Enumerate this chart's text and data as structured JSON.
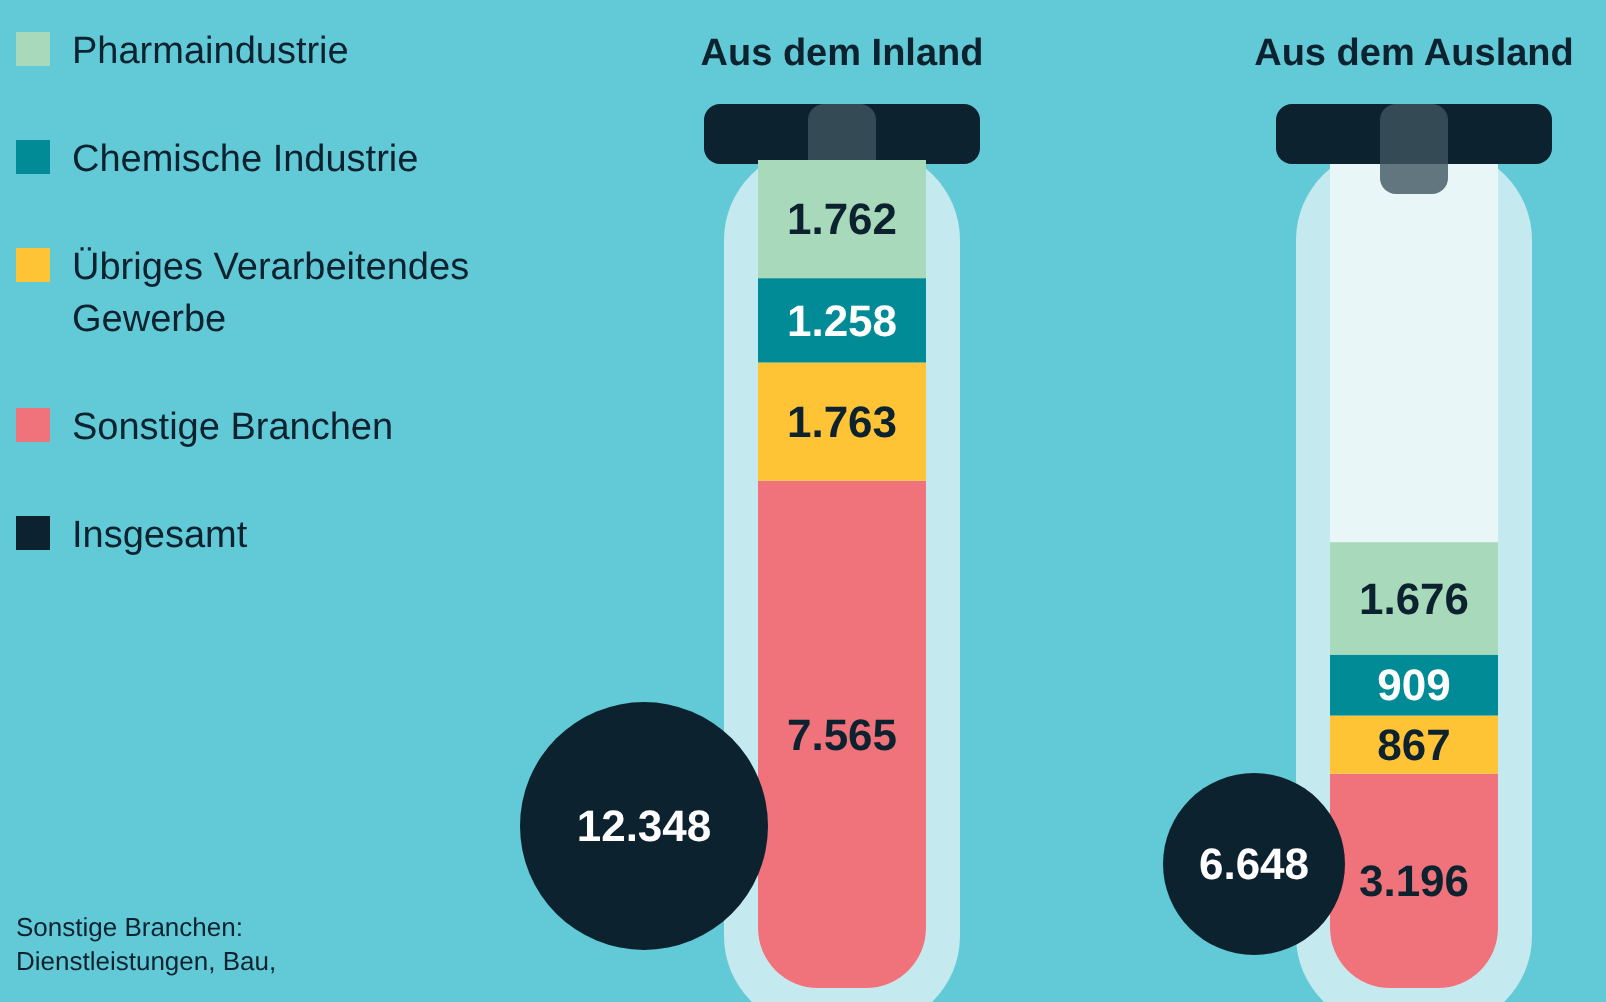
{
  "chart_data": {
    "type": "bar",
    "stacked": true,
    "categories": [
      "Aus dem Inland",
      "Aus dem Ausland"
    ],
    "series": [
      {
        "name": "Sonstige Branchen",
        "color": "#f0727b",
        "values": [
          7565,
          3196
        ],
        "value_labels": [
          "7.565",
          "3.196"
        ]
      },
      {
        "name": "Übriges Verarbeitendes Gewerbe",
        "color": "#ffc336",
        "values": [
          1763,
          867
        ],
        "value_labels": [
          "1.763",
          "867"
        ]
      },
      {
        "name": "Chemische Industrie",
        "color": "#008b96",
        "values": [
          1258,
          909
        ],
        "value_labels": [
          "1.258",
          "909"
        ]
      },
      {
        "name": "Pharmaindustrie",
        "color": "#a9d9bb",
        "values": [
          1762,
          1676
        ],
        "value_labels": [
          "1.762",
          "1.676"
        ]
      },
      {
        "name": "Insgesamt",
        "type": "bubble",
        "color": "#0d222f",
        "values": [
          null,
          null
        ]
      }
    ],
    "totals": [
      "12.348",
      "6.648"
    ],
    "legend": "left",
    "annotations": [
      "Sonstige Branchen: Dienstleistungen, Bau,"
    ]
  }
}
